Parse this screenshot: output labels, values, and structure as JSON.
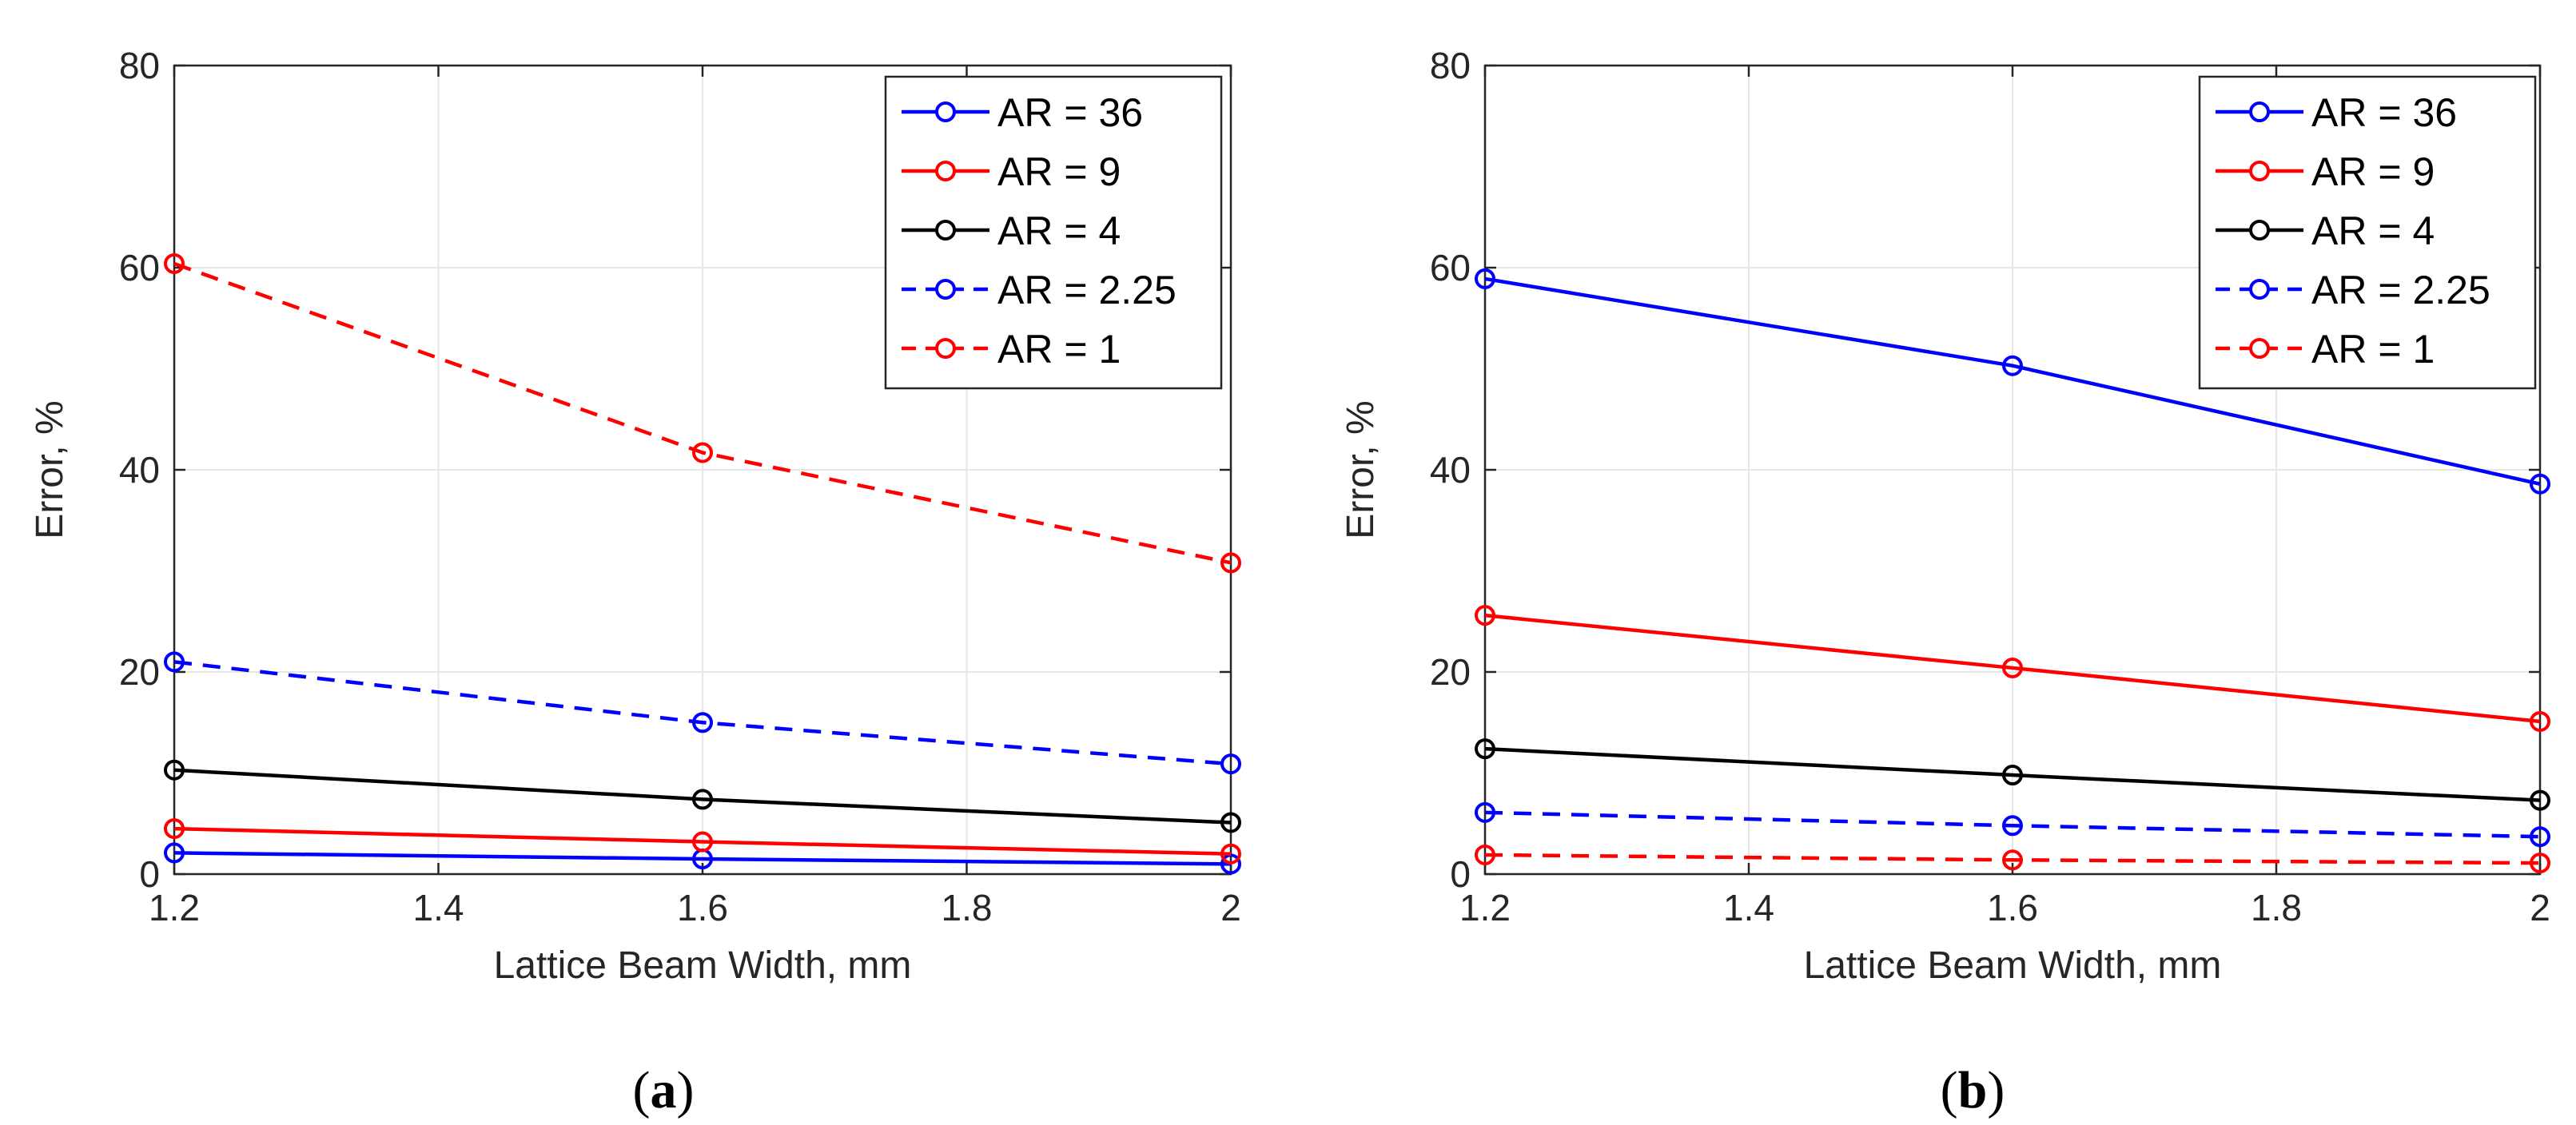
{
  "colors": {
    "blue": "#0000ff",
    "red": "#ff0000",
    "black": "#000000"
  },
  "chart_data": [
    {
      "type": "line",
      "caption_letter": "a",
      "xlabel": "Lattice Beam Width, mm",
      "ylabel": "Error, %",
      "xlim": [
        1.2,
        2
      ],
      "ylim": [
        0,
        80
      ],
      "xticks": [
        1.2,
        1.4,
        1.6,
        1.8,
        2
      ],
      "xtick_labels": [
        "1.2",
        "1.4",
        "1.6",
        "1.8",
        "2"
      ],
      "yticks": [
        0,
        20,
        40,
        60,
        80
      ],
      "ytick_labels": [
        "0",
        "20",
        "40",
        "60",
        "80"
      ],
      "grid": true,
      "legend_position": "top-right",
      "x": [
        1.2,
        1.6,
        2
      ],
      "series": [
        {
          "name": "AR = 36",
          "color": "#0000ff",
          "style": "solid",
          "values": [
            2.1,
            1.5,
            1.0
          ]
        },
        {
          "name": "AR = 9",
          "color": "#ff0000",
          "style": "solid",
          "values": [
            4.5,
            3.2,
            2.0
          ]
        },
        {
          "name": "AR = 4",
          "color": "#000000",
          "style": "solid",
          "values": [
            10.3,
            7.4,
            5.1
          ]
        },
        {
          "name": "AR = 2.25",
          "color": "#0000ff",
          "style": "dashed",
          "values": [
            21.0,
            15.0,
            10.9
          ]
        },
        {
          "name": "AR = 1",
          "color": "#ff0000",
          "style": "dashed",
          "values": [
            60.4,
            41.7,
            30.8
          ]
        }
      ]
    },
    {
      "type": "line",
      "caption_letter": "b",
      "xlabel": "Lattice Beam Width, mm",
      "ylabel": "Error, %",
      "xlim": [
        1.2,
        2
      ],
      "ylim": [
        0,
        80
      ],
      "xticks": [
        1.2,
        1.4,
        1.6,
        1.8,
        2
      ],
      "xtick_labels": [
        "1.2",
        "1.4",
        "1.6",
        "1.8",
        "2"
      ],
      "yticks": [
        0,
        20,
        40,
        60,
        80
      ],
      "ytick_labels": [
        "0",
        "20",
        "40",
        "60",
        "80"
      ],
      "grid": true,
      "legend_position": "top-right",
      "x": [
        1.2,
        1.6,
        2
      ],
      "series": [
        {
          "name": "AR = 36",
          "color": "#0000ff",
          "style": "solid",
          "values": [
            58.9,
            50.3,
            38.6
          ]
        },
        {
          "name": "AR = 9",
          "color": "#ff0000",
          "style": "solid",
          "values": [
            25.6,
            20.4,
            15.1
          ]
        },
        {
          "name": "AR = 4",
          "color": "#000000",
          "style": "solid",
          "values": [
            12.4,
            9.8,
            7.3
          ]
        },
        {
          "name": "AR = 2.25",
          "color": "#0000ff",
          "style": "dashed",
          "values": [
            6.1,
            4.8,
            3.7
          ]
        },
        {
          "name": "AR = 1",
          "color": "#ff0000",
          "style": "dashed",
          "values": [
            1.9,
            1.4,
            1.1
          ]
        }
      ]
    }
  ]
}
